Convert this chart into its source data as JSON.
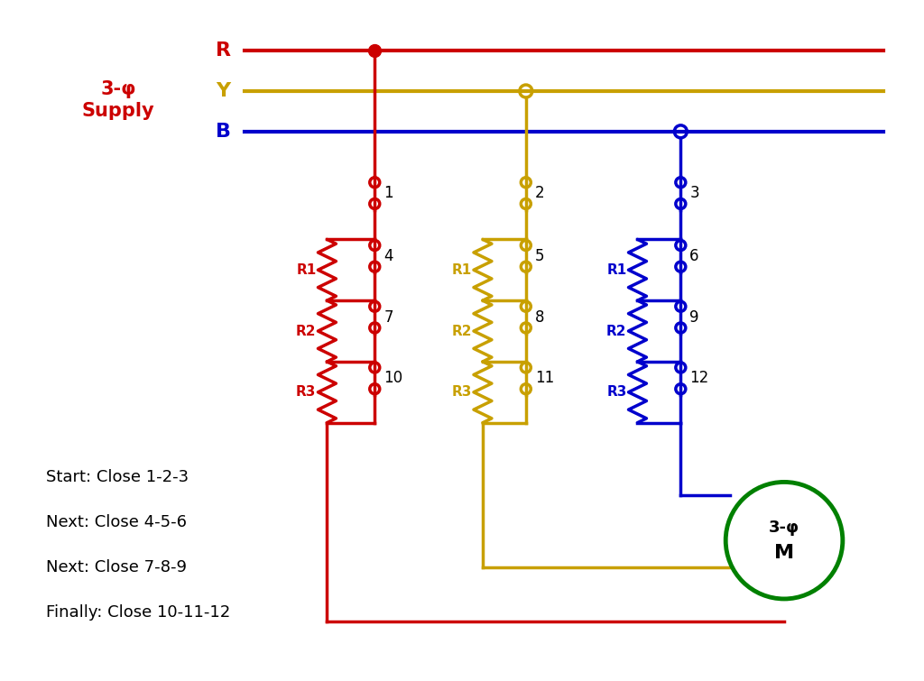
{
  "colors": {
    "red": "#CC0000",
    "yellow": "#C8A000",
    "blue": "#0000CC",
    "green": "#008000",
    "black": "#000000",
    "white": "#FFFFFF"
  },
  "instructions": [
    "Start: Close 1-2-3",
    "Next: Close 4-5-6",
    "Next: Close 7-8-9",
    "Finally: Close 10-11-12"
  ]
}
